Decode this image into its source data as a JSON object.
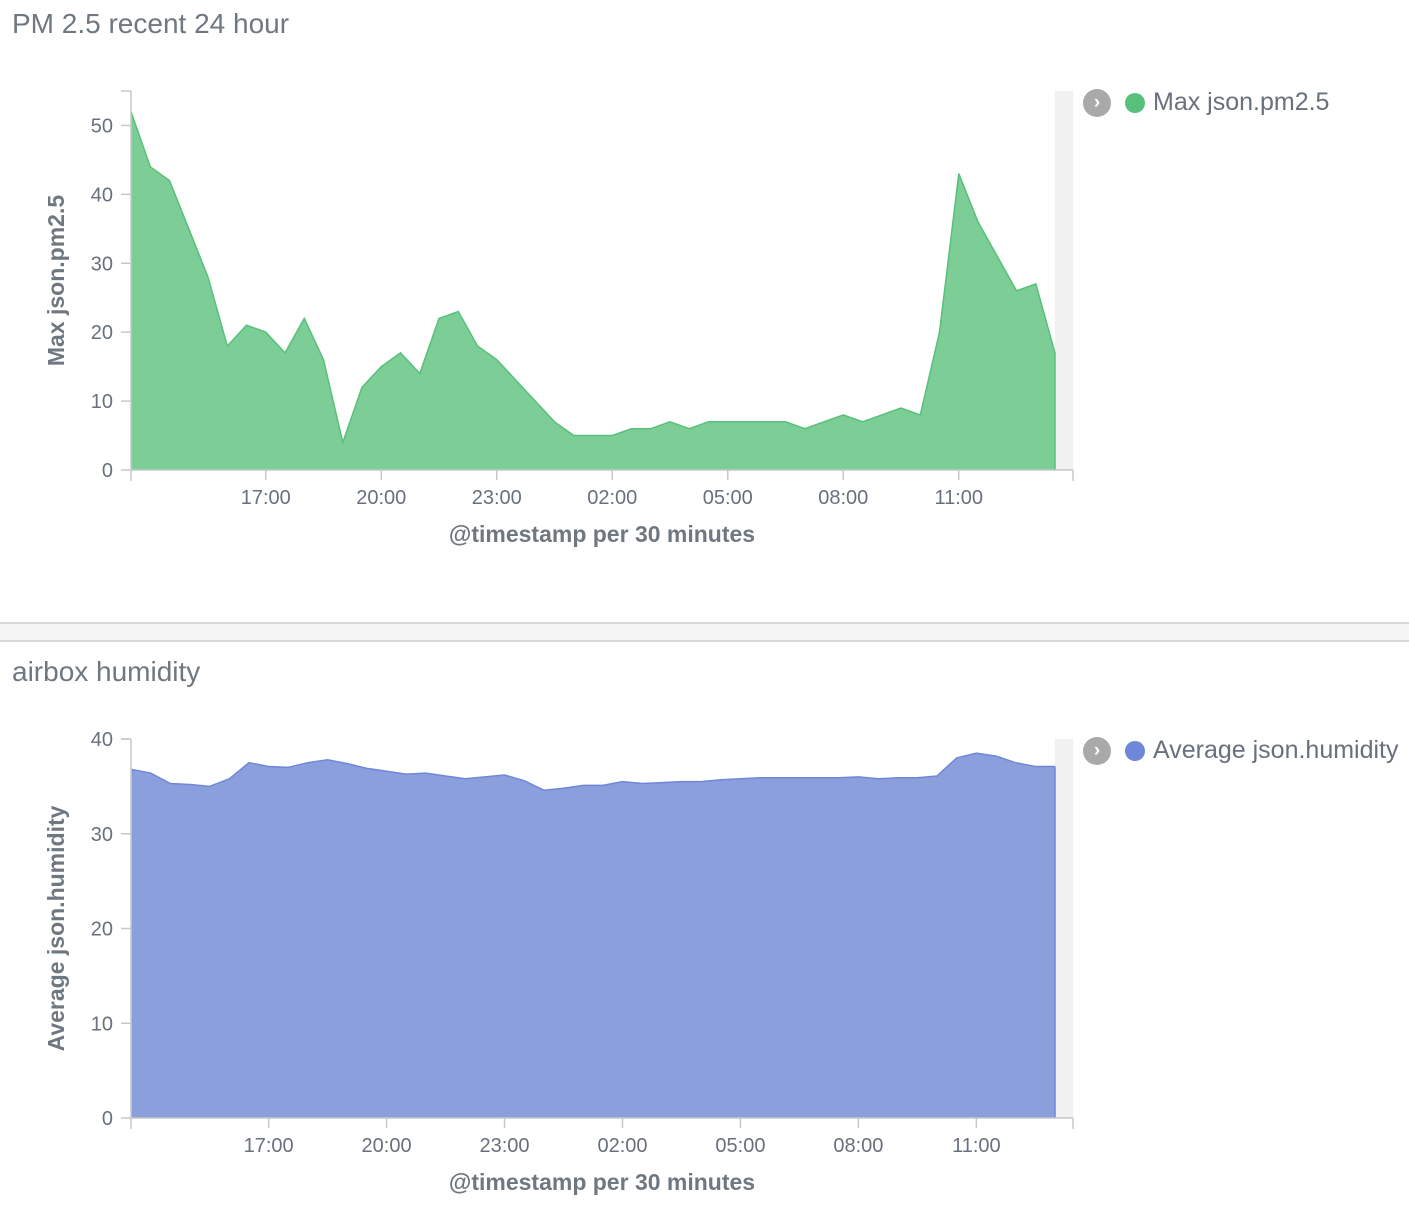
{
  "panels": [
    {
      "title": "PM 2.5 recent 24 hour",
      "legend": {
        "toggle_glyph": "›",
        "label": "Max json.pm2.5",
        "color": "#57c17b"
      },
      "fill_color": "#7dcd97",
      "line_color": "#57c17b"
    },
    {
      "title": "airbox humidity",
      "legend": {
        "toggle_glyph": "›",
        "label": "Average json.humidity",
        "color": "#6f87d8"
      },
      "fill_color": "#8c9fdd",
      "line_color": "#6f87d8"
    }
  ],
  "chart_data": [
    {
      "type": "area",
      "title": "PM 2.5 recent 24 hour",
      "xlabel": "@timestamp per 30 minutes",
      "ylabel": "Max json.pm2.5",
      "x_ticks": [
        "17:00",
        "20:00",
        "23:00",
        "02:00",
        "05:00",
        "08:00",
        "11:00"
      ],
      "x_start": "13:30",
      "x_interval_minutes": 30,
      "y_ticks": [
        0,
        10,
        20,
        30,
        40,
        50
      ],
      "ylim": [
        0,
        55
      ],
      "grid": false,
      "legend_position": "top-right",
      "series": [
        {
          "name": "Max json.pm2.5",
          "values": [
            52,
            44,
            42,
            35,
            28,
            18,
            21,
            20,
            17,
            22,
            16,
            4,
            12,
            15,
            17,
            14,
            22,
            23,
            18,
            16,
            13,
            10,
            7,
            5,
            5,
            5,
            6,
            6,
            7,
            6,
            7,
            7,
            7,
            7,
            7,
            6,
            7,
            8,
            7,
            8,
            9,
            8,
            20,
            43,
            36,
            31,
            26,
            27,
            17
          ]
        }
      ]
    },
    {
      "type": "area",
      "title": "airbox humidity",
      "xlabel": "@timestamp per 30 minutes",
      "ylabel": "Average json.humidity",
      "x_ticks": [
        "17:00",
        "20:00",
        "23:00",
        "02:00",
        "05:00",
        "08:00",
        "11:00"
      ],
      "x_start": "13:30",
      "x_interval_minutes": 30,
      "y_ticks": [
        0,
        10,
        20,
        30,
        40
      ],
      "ylim": [
        0,
        40
      ],
      "grid": false,
      "legend_position": "top-right",
      "series": [
        {
          "name": "Average json.humidity",
          "values": [
            36.8,
            36.4,
            35.3,
            35.2,
            35.0,
            35.8,
            37.5,
            37.1,
            37.0,
            37.5,
            37.8,
            37.4,
            36.9,
            36.6,
            36.3,
            36.4,
            36.1,
            35.8,
            36.0,
            36.2,
            35.6,
            34.6,
            34.8,
            35.1,
            35.1,
            35.5,
            35.3,
            35.4,
            35.5,
            35.5,
            35.7,
            35.8,
            35.9,
            35.9,
            35.9,
            35.9,
            35.9,
            36.0,
            35.8,
            35.9,
            35.9,
            36.1,
            38.0,
            38.5,
            38.2,
            37.5,
            37.1,
            37.1
          ]
        }
      ]
    }
  ]
}
